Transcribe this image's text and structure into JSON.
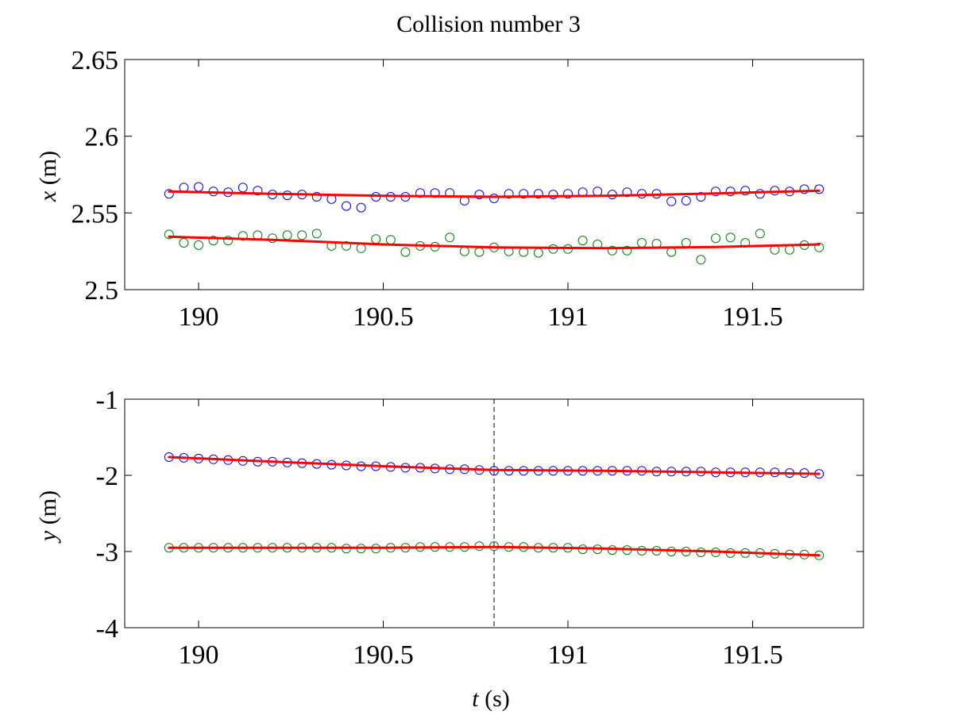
{
  "chart_data": [
    {
      "type": "scatter",
      "title": "Collision number 3",
      "xlabel": "",
      "ylabel_var": "x",
      "ylabel_unit": " (m)",
      "xlim": [
        189.8,
        191.8
      ],
      "ylim": [
        2.5,
        2.65
      ],
      "xticks": [
        190,
        190.5,
        191,
        191.5
      ],
      "xtick_labels": [
        "190",
        "190.5",
        "191",
        "191.5"
      ],
      "yticks": [
        2.5,
        2.55,
        2.6,
        2.65
      ],
      "ytick_labels": [
        "2.5",
        "2.55",
        "2.6",
        "2.65"
      ],
      "grid": false,
      "t": [
        189.92,
        189.96,
        190.0,
        190.04,
        190.08,
        190.12,
        190.16,
        190.2,
        190.24,
        190.28,
        190.32,
        190.36,
        190.4,
        190.44,
        190.48,
        190.52,
        190.56,
        190.6,
        190.64,
        190.68,
        190.72,
        190.76,
        190.8,
        190.84,
        190.88,
        190.92,
        190.96,
        191.0,
        191.04,
        191.08,
        191.12,
        191.16,
        191.2,
        191.24,
        191.28,
        191.32,
        191.36,
        191.4,
        191.44,
        191.48,
        191.52,
        191.56,
        191.6,
        191.64,
        191.68
      ],
      "series": [
        {
          "color": "#0000ff",
          "marker": "circle",
          "values": [
            2.5625,
            2.5665,
            2.567,
            2.564,
            2.5635,
            2.5665,
            2.5645,
            2.562,
            2.5615,
            2.562,
            2.5605,
            2.559,
            2.5545,
            2.5535,
            2.5605,
            2.5605,
            2.5605,
            2.563,
            2.563,
            2.563,
            2.558,
            2.562,
            2.5595,
            2.5625,
            2.5625,
            2.5625,
            2.562,
            2.5625,
            2.5635,
            2.564,
            2.562,
            2.5635,
            2.5625,
            2.5625,
            2.5575,
            2.558,
            2.5605,
            2.564,
            2.564,
            2.5645,
            2.5625,
            2.5645,
            2.564,
            2.5655,
            2.5655
          ]
        },
        {
          "color": "#008000",
          "marker": "circle",
          "values": [
            2.536,
            2.5305,
            2.529,
            2.532,
            2.532,
            2.535,
            2.5355,
            2.5335,
            2.5355,
            2.5355,
            2.5365,
            2.5285,
            2.5285,
            2.527,
            2.533,
            2.5325,
            2.5245,
            2.5285,
            2.528,
            2.534,
            2.525,
            2.5245,
            2.5275,
            2.525,
            2.5245,
            2.524,
            2.5265,
            2.5265,
            2.532,
            2.5295,
            2.5255,
            2.5255,
            2.5305,
            2.53,
            2.5245,
            2.5305,
            2.5195,
            2.5335,
            2.534,
            2.5305,
            2.5365,
            2.526,
            2.526,
            2.529,
            2.5275
          ]
        },
        {
          "color": "#ff0000",
          "style": "line",
          "x": [
            189.92,
            190.2,
            190.5,
            190.8,
            191.1,
            191.4,
            191.68
          ],
          "values": [
            2.564,
            2.5625,
            2.5612,
            2.5605,
            2.5612,
            2.5627,
            2.5645
          ]
        },
        {
          "color": "#ff0000",
          "style": "line",
          "x": [
            189.92,
            190.2,
            190.5,
            190.8,
            191.1,
            191.4,
            191.68
          ],
          "values": [
            2.5345,
            2.5325,
            2.5295,
            2.5275,
            2.527,
            2.5278,
            2.5295
          ]
        }
      ]
    },
    {
      "type": "scatter",
      "title": "",
      "xlabel_var": "t",
      "xlabel_unit": " (s)",
      "ylabel_var": "y",
      "ylabel_unit": " (m)",
      "xlim": [
        189.8,
        191.8
      ],
      "ylim": [
        -4,
        -1
      ],
      "xticks": [
        190,
        190.5,
        191,
        191.5
      ],
      "xtick_labels": [
        "190",
        "190.5",
        "191",
        "191.5"
      ],
      "yticks": [
        -4,
        -3,
        -2,
        -1
      ],
      "ytick_labels": [
        "-4",
        "-3",
        "-2",
        "-1"
      ],
      "grid": false,
      "vline": {
        "x": 190.8,
        "style": "dashed",
        "color": "#000000"
      },
      "t": [
        189.92,
        189.96,
        190.0,
        190.04,
        190.08,
        190.12,
        190.16,
        190.2,
        190.24,
        190.28,
        190.32,
        190.36,
        190.4,
        190.44,
        190.48,
        190.52,
        190.56,
        190.6,
        190.64,
        190.68,
        190.72,
        190.76,
        190.8,
        190.84,
        190.88,
        190.92,
        190.96,
        191.0,
        191.04,
        191.08,
        191.12,
        191.16,
        191.2,
        191.24,
        191.28,
        191.32,
        191.36,
        191.4,
        191.44,
        191.48,
        191.52,
        191.56,
        191.6,
        191.64,
        191.68
      ],
      "series": [
        {
          "color": "#0000ff",
          "marker": "circle",
          "values": [
            -1.76,
            -1.77,
            -1.78,
            -1.79,
            -1.8,
            -1.81,
            -1.82,
            -1.82,
            -1.83,
            -1.84,
            -1.85,
            -1.86,
            -1.87,
            -1.88,
            -1.88,
            -1.89,
            -1.9,
            -1.9,
            -1.91,
            -1.92,
            -1.92,
            -1.93,
            -1.94,
            -1.94,
            -1.94,
            -1.94,
            -1.94,
            -1.94,
            -1.94,
            -1.94,
            -1.94,
            -1.94,
            -1.94,
            -1.95,
            -1.95,
            -1.95,
            -1.95,
            -1.96,
            -1.96,
            -1.96,
            -1.96,
            -1.96,
            -1.97,
            -1.97,
            -1.98
          ]
        },
        {
          "color": "#008000",
          "marker": "circle",
          "values": [
            -2.95,
            -2.95,
            -2.95,
            -2.95,
            -2.95,
            -2.95,
            -2.95,
            -2.95,
            -2.95,
            -2.95,
            -2.95,
            -2.95,
            -2.96,
            -2.96,
            -2.96,
            -2.95,
            -2.95,
            -2.94,
            -2.94,
            -2.94,
            -2.94,
            -2.93,
            -2.93,
            -2.94,
            -2.94,
            -2.95,
            -2.95,
            -2.95,
            -2.97,
            -2.97,
            -2.98,
            -2.98,
            -2.99,
            -2.99,
            -3.0,
            -3.0,
            -3.01,
            -3.01,
            -3.02,
            -3.02,
            -3.02,
            -3.03,
            -3.04,
            -3.04,
            -3.05
          ]
        },
        {
          "color": "#ff0000",
          "style": "line",
          "x": [
            189.92,
            190.2,
            190.5,
            190.8,
            191.1,
            191.4,
            191.68
          ],
          "values": [
            -1.76,
            -1.82,
            -1.88,
            -1.93,
            -1.94,
            -1.96,
            -1.98
          ]
        },
        {
          "color": "#ff0000",
          "style": "line",
          "x": [
            189.92,
            190.2,
            190.5,
            190.8,
            191.1,
            191.4,
            191.68
          ],
          "values": [
            -2.95,
            -2.95,
            -2.95,
            -2.94,
            -2.96,
            -3.0,
            -3.05
          ]
        }
      ]
    }
  ]
}
